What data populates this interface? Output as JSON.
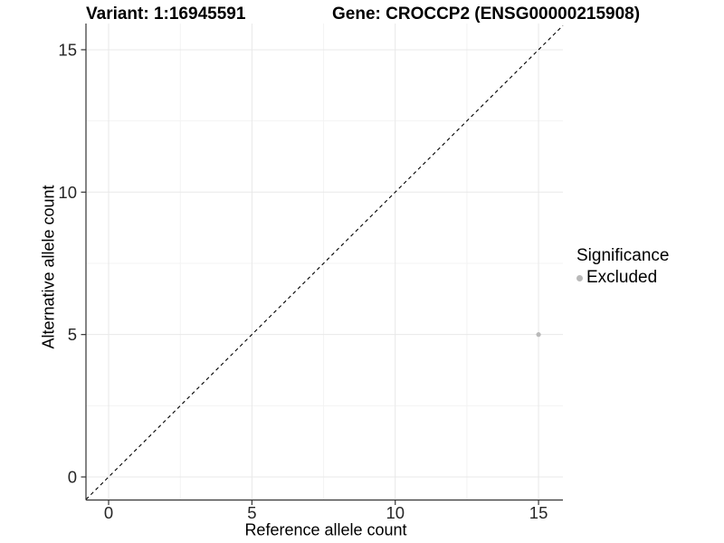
{
  "titles": {
    "variant": "Variant: 1:16945591",
    "gene": "Gene: CROCCP2 (ENSG00000215908)"
  },
  "chart_data": {
    "type": "scatter",
    "xlabel": "Reference allele count",
    "ylabel": "Alternative allele count",
    "x_ticks": [
      0,
      5,
      10,
      15
    ],
    "y_ticks": [
      0,
      5,
      10,
      15
    ],
    "x_minor_ticks": [
      2.5,
      7.5,
      12.5
    ],
    "y_minor_ticks": [
      2.5,
      7.5,
      12.5
    ],
    "xlim": [
      -0.79,
      15.85
    ],
    "ylim": [
      -0.81,
      15.92
    ],
    "grid": true,
    "identity_line": {
      "type": "dashed",
      "color": "#000000",
      "slope": 1,
      "intercept": 0
    },
    "points": [
      {
        "x": 15,
        "y": 5,
        "series": "Excluded"
      }
    ],
    "legend": {
      "title": "Significance",
      "position": "right",
      "items": [
        {
          "label": "Excluded",
          "color": "#b9b9b9"
        }
      ]
    }
  },
  "colors": {
    "point": "#b9b9b9",
    "grid_major": "#e8e8e8",
    "grid_minor": "#f3f3f3",
    "axis_line": "#333333",
    "tick_label": "#262626",
    "background": "#ffffff"
  }
}
